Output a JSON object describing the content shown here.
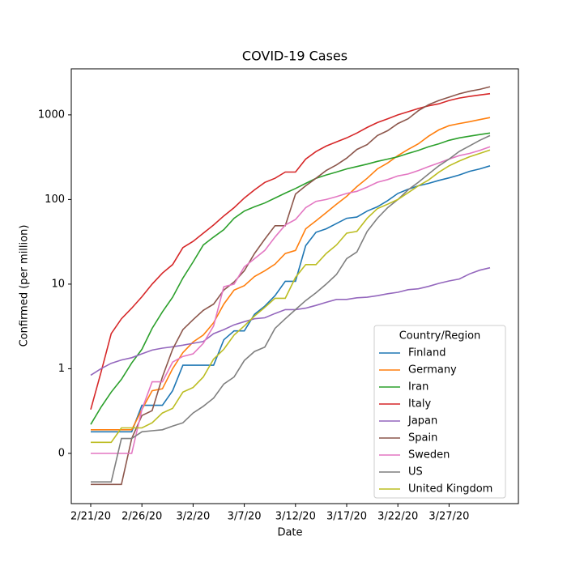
{
  "chart_data": {
    "type": "line",
    "title": "COVID-19 Cases",
    "x_label": "Date",
    "y_label": "Confirmed (per million)",
    "log_scale": true,
    "legend_position": "lower right",
    "legend_title": "Country/Region",
    "categories": [
      "2/21/20",
      null,
      null,
      null,
      null,
      "2/26/20",
      null,
      null,
      null,
      null,
      "3/2/20",
      null,
      null,
      null,
      null,
      "3/7/20",
      null,
      null,
      null,
      null,
      "3/12/20",
      null,
      null,
      null,
      null,
      "3/17/20",
      null,
      null,
      null,
      null,
      "3/22/20",
      null,
      null,
      null,
      null,
      "3/27/20",
      null,
      null,
      null,
      null
    ],
    "ylim": [
      0.0255,
      3500
    ],
    "yticks": [
      {
        "value": 0.1,
        "label": "0"
      },
      1,
      10,
      100,
      1000
    ],
    "series": [
      {
        "name": "Finland",
        "color": "#1f77b4",
        "values": [
          0.18,
          0.18,
          0.18,
          0.18,
          0.18,
          0.37,
          0.37,
          0.37,
          0.55,
          1.1,
          1.1,
          1.1,
          1.1,
          2.2,
          2.8,
          2.8,
          4.4,
          5.5,
          7.3,
          10.8,
          10.8,
          28.5,
          41,
          45,
          52,
          60,
          62,
          73,
          82,
          97,
          118,
          132,
          145,
          155,
          168,
          180,
          195,
          215,
          230,
          250
        ]
      },
      {
        "name": "Germany",
        "color": "#ff7f0e",
        "values": [
          0.19,
          0.19,
          0.19,
          0.19,
          0.19,
          0.33,
          0.55,
          0.58,
          1.0,
          1.55,
          2.07,
          2.5,
          3.5,
          5.8,
          8.5,
          9.6,
          12.3,
          14.4,
          17.2,
          23,
          25,
          45,
          56,
          70,
          88,
          109,
          142,
          178,
          230,
          270,
          330,
          390,
          455,
          560,
          665,
          745,
          790,
          830,
          880,
          930
        ]
      },
      {
        "name": "Iran",
        "color": "#2ca02c",
        "values": [
          0.22,
          0.35,
          0.53,
          0.75,
          1.17,
          1.7,
          3.0,
          4.7,
          7,
          11.8,
          18.3,
          29,
          36,
          44,
          60,
          73,
          82,
          91,
          104,
          119,
          135,
          155,
          178,
          195,
          211,
          230,
          245,
          262,
          282,
          300,
          320,
          350,
          380,
          420,
          455,
          500,
          535,
          560,
          585,
          610
        ]
      },
      {
        "name": "Italy",
        "color": "#d62728",
        "values": [
          0.33,
          0.9,
          2.6,
          3.9,
          5.2,
          7.1,
          10,
          13.5,
          17,
          27,
          32,
          40,
          50,
          64,
          80,
          104,
          130,
          159,
          178,
          211,
          211,
          300,
          368,
          428,
          480,
          535,
          610,
          710,
          810,
          900,
          1000,
          1090,
          1190,
          1280,
          1350,
          1480,
          1580,
          1650,
          1720,
          1780
        ]
      },
      {
        "name": "Japan",
        "color": "#9467bd",
        "values": [
          0.84,
          1.0,
          1.16,
          1.27,
          1.35,
          1.5,
          1.66,
          1.75,
          1.82,
          1.9,
          2.0,
          2.1,
          2.6,
          2.9,
          3.3,
          3.6,
          3.9,
          4.0,
          4.5,
          5.0,
          5.0,
          5.2,
          5.6,
          6.1,
          6.6,
          6.6,
          6.9,
          7.0,
          7.3,
          7.7,
          8.0,
          8.6,
          8.8,
          9.4,
          10.2,
          10.9,
          11.5,
          13.2,
          14.6,
          15.6
        ]
      },
      {
        "name": "Spain",
        "color": "#8c564b",
        "values": [
          0.043,
          0.043,
          0.043,
          0.043,
          0.15,
          0.28,
          0.32,
          0.8,
          1.7,
          2.9,
          3.8,
          4.9,
          5.8,
          8.5,
          10.6,
          14.4,
          23,
          34,
          49,
          49,
          116,
          145,
          178,
          220,
          256,
          308,
          390,
          445,
          570,
          650,
          790,
          900,
          1120,
          1320,
          1480,
          1620,
          1770,
          1900,
          2000,
          2150
        ]
      },
      {
        "name": "Sweden",
        "color": "#e377c2",
        "values": [
          0.1,
          0.1,
          0.1,
          0.1,
          0.1,
          0.33,
          0.7,
          0.7,
          1.2,
          1.4,
          1.5,
          2.0,
          3.2,
          9.3,
          10,
          16,
          20,
          25,
          36,
          50,
          58,
          80,
          95,
          100,
          108,
          118,
          125,
          140,
          160,
          172,
          190,
          200,
          220,
          245,
          270,
          300,
          330,
          350,
          380,
          420
        ]
      },
      {
        "name": "US",
        "color": "#7f7f7f",
        "values": [
          0.046,
          0.046,
          0.046,
          0.15,
          0.15,
          0.18,
          0.185,
          0.19,
          0.21,
          0.23,
          0.3,
          0.36,
          0.45,
          0.66,
          0.8,
          1.25,
          1.6,
          1.8,
          3.0,
          3.9,
          5.0,
          6.4,
          7.9,
          10,
          13,
          20,
          24,
          42,
          60,
          80,
          100,
          130,
          160,
          200,
          250,
          300,
          370,
          430,
          500,
          570
        ]
      },
      {
        "name": "United Kingdom",
        "color": "#bcbd22",
        "values": [
          0.135,
          0.135,
          0.135,
          0.2,
          0.2,
          0.2,
          0.23,
          0.3,
          0.34,
          0.53,
          0.6,
          0.8,
          1.3,
          1.7,
          2.5,
          3.2,
          4.2,
          5.3,
          6.8,
          6.8,
          12,
          17,
          17,
          23,
          29,
          40,
          42,
          60,
          78,
          88,
          100,
          120,
          145,
          170,
          210,
          250,
          285,
          320,
          350,
          385
        ]
      }
    ]
  }
}
